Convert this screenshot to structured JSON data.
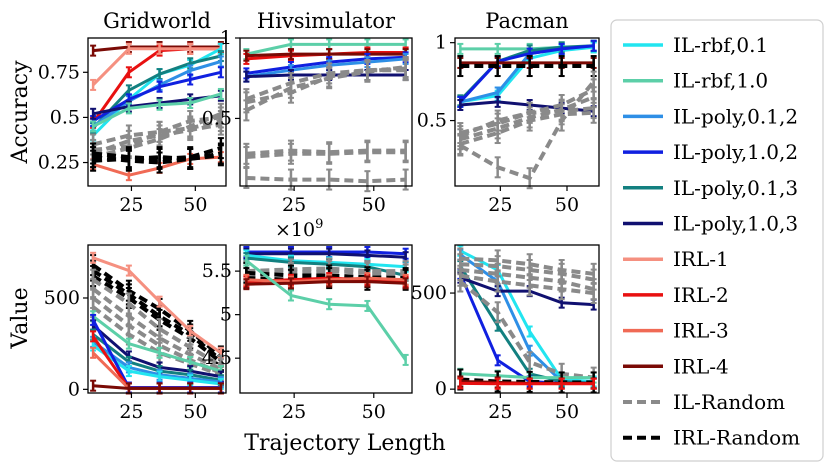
{
  "figure": {
    "xlabel": "Trajectory Length",
    "row_labels": [
      "Accuracy",
      "Value"
    ],
    "hiv_value_offset": "×10",
    "hiv_value_exponent": "9"
  },
  "colors": {
    "IL-rbf,0.1": "#22e5f0",
    "IL-rbf,1.0": "#5ccfa8",
    "IL-poly,0.1,2": "#2e8fe6",
    "IL-poly,1.0,2": "#1020e0",
    "IL-poly,0.1,3": "#138080",
    "IL-poly,1.0,3": "#101070",
    "IRL-1": "#f59080",
    "IRL-2": "#e81010",
    "IRL-3": "#f06a55",
    "IRL-4": "#7a0a05",
    "IL-Random": "#8a8a8a",
    "IRL-Random": "#000000"
  },
  "chart_data": [
    {
      "type": "line",
      "title": "Gridworld",
      "ylabel": "Accuracy",
      "xlabel": "",
      "x": [
        10,
        24,
        36,
        48,
        60
      ],
      "xlim": [
        8,
        62
      ],
      "ylim": [
        0.12,
        0.94
      ],
      "xticks": [
        25,
        50
      ],
      "yticks": [
        0.25,
        0.5,
        0.75
      ],
      "series": [
        {
          "name": "IRL-4",
          "values": [
            0.87,
            0.89,
            0.89,
            0.89,
            0.89
          ]
        },
        {
          "name": "IRL-2",
          "values": [
            0.47,
            0.75,
            0.87,
            0.88,
            0.88
          ]
        },
        {
          "name": "IRL-1",
          "values": [
            0.68,
            0.88,
            0.88,
            0.88,
            0.88
          ]
        },
        {
          "name": "IRL-3",
          "values": [
            0.24,
            0.18,
            0.22,
            0.27,
            0.28
          ]
        },
        {
          "name": "IL-rbf,0.1",
          "values": [
            0.4,
            0.6,
            0.74,
            0.79,
            0.88
          ]
        },
        {
          "name": "IL-poly,0.1,3",
          "values": [
            0.44,
            0.65,
            0.74,
            0.8,
            0.84
          ]
        },
        {
          "name": "IL-poly,0.1,2",
          "values": [
            0.45,
            0.59,
            0.68,
            0.76,
            0.81
          ]
        },
        {
          "name": "IL-poly,1.0,2",
          "values": [
            0.48,
            0.6,
            0.67,
            0.71,
            0.75
          ]
        },
        {
          "name": "IL-poly,1.0,3",
          "values": [
            0.52,
            0.56,
            0.58,
            0.6,
            0.62
          ]
        },
        {
          "name": "IL-rbf,1.0",
          "values": [
            0.45,
            0.55,
            0.57,
            0.58,
            0.63
          ]
        },
        {
          "name": "IL-Random",
          "values": [
            0.35,
            0.4,
            0.42,
            0.44,
            0.48
          ]
        },
        {
          "name": "IL-Random",
          "values": [
            0.3,
            0.37,
            0.4,
            0.43,
            0.46
          ]
        },
        {
          "name": "IL-Random",
          "values": [
            0.32,
            0.34,
            0.42,
            0.48,
            0.5
          ]
        },
        {
          "name": "IL-Random",
          "values": [
            0.28,
            0.33,
            0.38,
            0.45,
            0.52
          ]
        },
        {
          "name": "IRL-Random",
          "values": [
            0.3,
            0.28,
            0.27,
            0.28,
            0.33
          ]
        },
        {
          "name": "IRL-Random",
          "values": [
            0.28,
            0.26,
            0.25,
            0.27,
            0.3
          ]
        },
        {
          "name": "IRL-Random",
          "values": [
            0.26,
            0.27,
            0.28,
            0.27,
            0.29
          ]
        }
      ]
    },
    {
      "type": "line",
      "title": "Hivsimulator",
      "ylabel": "",
      "xlabel": "",
      "x": [
        10,
        24,
        36,
        48,
        60
      ],
      "xlim": [
        8,
        62
      ],
      "ylim": [
        0.08,
        1.0
      ],
      "xticks": [
        25,
        50
      ],
      "yticks": [
        0.5,
        1.0
      ],
      "series": [
        {
          "name": "IL-rbf,1.0",
          "values": [
            0.9,
            0.96,
            0.96,
            0.96,
            0.96
          ]
        },
        {
          "name": "IRL-2",
          "values": [
            0.87,
            0.89,
            0.9,
            0.91,
            0.91
          ]
        },
        {
          "name": "IRL-4",
          "values": [
            0.89,
            0.9,
            0.9,
            0.9,
            0.9
          ]
        },
        {
          "name": "IL-poly,1.0,2",
          "values": [
            0.78,
            0.82,
            0.85,
            0.87,
            0.88
          ]
        },
        {
          "name": "IL-poly,0.1,2",
          "values": [
            0.76,
            0.8,
            0.83,
            0.85,
            0.87
          ]
        },
        {
          "name": "IL-poly,1.0,3",
          "values": [
            0.76,
            0.77,
            0.77,
            0.77,
            0.77
          ]
        },
        {
          "name": "IL-Random",
          "values": [
            0.55,
            0.69,
            0.75,
            0.79,
            0.82
          ]
        },
        {
          "name": "IL-Random",
          "values": [
            0.62,
            0.72,
            0.78,
            0.8,
            0.8
          ]
        },
        {
          "name": "IL-Random",
          "values": [
            0.6,
            0.66,
            0.76,
            0.8,
            0.81
          ]
        },
        {
          "name": "IL-Random",
          "values": [
            0.28,
            0.3,
            0.29,
            0.3,
            0.3
          ]
        },
        {
          "name": "IL-Random",
          "values": [
            0.26,
            0.28,
            0.28,
            0.29,
            0.29
          ]
        },
        {
          "name": "IL-Random",
          "values": [
            0.13,
            0.12,
            0.12,
            0.11,
            0.12
          ]
        }
      ]
    },
    {
      "type": "line",
      "title": "Pacman",
      "ylabel": "",
      "xlabel": "",
      "x": [
        10,
        24,
        36,
        48,
        60
      ],
      "xlim": [
        8,
        62
      ],
      "ylim": [
        0.08,
        1.03
      ],
      "xticks": [
        25,
        50
      ],
      "yticks": [
        0.5,
        1.0
      ],
      "series": [
        {
          "name": "IL-rbf,1.0",
          "values": [
            0.96,
            0.96,
            0.96,
            0.97,
            0.97
          ]
        },
        {
          "name": "IL-rbf,0.1",
          "values": [
            0.62,
            0.66,
            0.9,
            0.95,
            0.97
          ]
        },
        {
          "name": "IL-poly,0.1,2",
          "values": [
            0.62,
            0.68,
            0.93,
            0.96,
            0.98
          ]
        },
        {
          "name": "IL-poly,0.1,3",
          "values": [
            0.63,
            0.88,
            0.95,
            0.97,
            0.98
          ]
        },
        {
          "name": "IL-poly,1.0,2",
          "values": [
            0.62,
            0.88,
            0.93,
            0.96,
            0.98
          ]
        },
        {
          "name": "IL-poly,1.0,3",
          "values": [
            0.6,
            0.62,
            0.6,
            0.58,
            0.56
          ]
        },
        {
          "name": "IRL-4",
          "values": [
            0.87,
            0.87,
            0.87,
            0.87,
            0.87
          ]
        },
        {
          "name": "IRL-Random",
          "values": [
            0.85,
            0.85,
            0.85,
            0.85,
            0.85
          ]
        },
        {
          "name": "IL-Random",
          "values": [
            0.4,
            0.5,
            0.55,
            0.6,
            0.7
          ]
        },
        {
          "name": "IL-Random",
          "values": [
            0.38,
            0.45,
            0.52,
            0.57,
            0.65
          ]
        },
        {
          "name": "IL-Random",
          "values": [
            0.42,
            0.48,
            0.55,
            0.56,
            0.58
          ]
        },
        {
          "name": "IL-Random",
          "values": [
            0.35,
            0.42,
            0.5,
            0.54,
            0.55
          ]
        },
        {
          "name": "IL-Random",
          "values": [
            0.34,
            0.2,
            0.13,
            0.5,
            0.75
          ]
        }
      ]
    },
    {
      "type": "line",
      "title": "",
      "ylabel": "Value",
      "xlabel": "",
      "x": [
        10,
        24,
        36,
        48,
        60
      ],
      "xlim": [
        8,
        62
      ],
      "ylim": [
        -20,
        790
      ],
      "xticks": [
        25,
        50
      ],
      "yticks": [
        0,
        500
      ],
      "series": [
        {
          "name": "IRL-Random",
          "values": [
            680,
            540,
            440,
            320,
            180
          ]
        },
        {
          "name": "IRL-Random",
          "values": [
            650,
            520,
            400,
            300,
            160
          ]
        },
        {
          "name": "IRL-Random",
          "values": [
            620,
            500,
            380,
            280,
            150
          ]
        },
        {
          "name": "IRL-1",
          "values": [
            720,
            650,
            480,
            320,
            200
          ]
        },
        {
          "name": "IL-Random",
          "values": [
            600,
            470,
            330,
            230,
            130
          ]
        },
        {
          "name": "IL-Random",
          "values": [
            550,
            400,
            280,
            190,
            110
          ]
        },
        {
          "name": "IL-Random",
          "values": [
            500,
            350,
            240,
            160,
            90
          ]
        },
        {
          "name": "IL-Random",
          "values": [
            450,
            300,
            200,
            140,
            80
          ]
        },
        {
          "name": "IL-rbf,1.0",
          "values": [
            400,
            250,
            200,
            150,
            100
          ]
        },
        {
          "name": "IL-poly,1.0,3",
          "values": [
            350,
            180,
            120,
            100,
            70
          ]
        },
        {
          "name": "IL-poly,0.1,3",
          "values": [
            300,
            150,
            100,
            80,
            50
          ]
        },
        {
          "name": "IL-poly,0.1,2",
          "values": [
            260,
            120,
            80,
            60,
            40
          ]
        },
        {
          "name": "IL-rbf,0.1",
          "values": [
            240,
            100,
            70,
            50,
            30
          ]
        },
        {
          "name": "IL-poly,1.0,2",
          "values": [
            380,
            10,
            10,
            10,
            10
          ]
        },
        {
          "name": "IRL-2",
          "values": [
            290,
            5,
            5,
            5,
            5
          ]
        },
        {
          "name": "IRL-3",
          "values": [
            200,
            5,
            5,
            5,
            5
          ]
        },
        {
          "name": "IRL-4",
          "values": [
            20,
            5,
            5,
            5,
            5
          ]
        }
      ]
    },
    {
      "type": "line",
      "title": "",
      "ylabel": "",
      "xlabel": "Trajectory Length",
      "x": [
        10,
        24,
        36,
        48,
        60
      ],
      "xlim": [
        8,
        62
      ],
      "ylim": [
        4.1,
        5.8
      ],
      "xticks": [
        25,
        50
      ],
      "yticks": [
        4.5,
        5.0,
        5.5
      ],
      "series": [
        {
          "name": "IL-poly,1.0,2",
          "values": [
            5.72,
            5.72,
            5.72,
            5.72,
            5.7
          ]
        },
        {
          "name": "IL-poly,1.0,3",
          "values": [
            5.7,
            5.7,
            5.7,
            5.68,
            5.66
          ]
        },
        {
          "name": "IL-rbf,0.1",
          "values": [
            5.68,
            5.62,
            5.6,
            5.58,
            5.55
          ]
        },
        {
          "name": "IL-poly,0.1,3",
          "values": [
            5.65,
            5.6,
            5.58,
            5.55,
            5.45
          ]
        },
        {
          "name": "IL-Random",
          "values": [
            5.5,
            5.52,
            5.53,
            5.5,
            5.5
          ]
        },
        {
          "name": "IL-Random",
          "values": [
            5.45,
            5.48,
            5.5,
            5.48,
            5.46
          ]
        },
        {
          "name": "IRL-Random",
          "values": [
            5.48,
            5.45,
            5.45,
            5.43,
            5.42
          ]
        },
        {
          "name": "IRL-Random",
          "values": [
            5.42,
            5.4,
            5.42,
            5.4,
            5.4
          ]
        },
        {
          "name": "IRL-2",
          "values": [
            5.38,
            5.4,
            5.42,
            5.4,
            5.38
          ]
        },
        {
          "name": "IRL-3",
          "values": [
            5.4,
            5.38,
            5.4,
            5.42,
            5.4
          ]
        },
        {
          "name": "IRL-4",
          "values": [
            5.35,
            5.36,
            5.38,
            5.38,
            5.36
          ]
        },
        {
          "name": "IL-rbf,1.0",
          "values": [
            5.62,
            5.22,
            5.12,
            5.1,
            4.48
          ]
        }
      ]
    },
    {
      "type": "line",
      "title": "",
      "ylabel": "",
      "xlabel": "",
      "x": [
        10,
        24,
        36,
        48,
        60
      ],
      "xlim": [
        8,
        62
      ],
      "ylim": [
        -20,
        750
      ],
      "xticks": [
        25,
        50
      ],
      "yticks": [
        0,
        500
      ],
      "series": [
        {
          "name": "IL-rbf,0.1",
          "values": [
            720,
            620,
            300,
            50,
            40
          ]
        },
        {
          "name": "IL-poly,0.1,2",
          "values": [
            700,
            560,
            200,
            40,
            30
          ]
        },
        {
          "name": "IL-poly,0.1,3",
          "values": [
            640,
            330,
            80,
            40,
            30
          ]
        },
        {
          "name": "IL-poly,1.0,2",
          "values": [
            600,
            150,
            40,
            30,
            30
          ]
        },
        {
          "name": "IL-poly,1.0,3",
          "values": [
            580,
            510,
            510,
            450,
            440
          ]
        },
        {
          "name": "IL-Random",
          "values": [
            680,
            670,
            650,
            620,
            600
          ]
        },
        {
          "name": "IL-Random",
          "values": [
            650,
            640,
            620,
            600,
            570
          ]
        },
        {
          "name": "IL-Random",
          "values": [
            620,
            600,
            580,
            560,
            520
          ]
        },
        {
          "name": "IL-Random",
          "values": [
            590,
            560,
            540,
            520,
            500
          ]
        },
        {
          "name": "IL-Random",
          "values": [
            560,
            400,
            140,
            80,
            60
          ]
        },
        {
          "name": "IL-rbf,1.0",
          "values": [
            80,
            70,
            60,
            60,
            60
          ]
        },
        {
          "name": "IRL-Random",
          "values": [
            50,
            40,
            38,
            35,
            35
          ]
        },
        {
          "name": "IRL-4",
          "values": [
            40,
            35,
            30,
            30,
            30
          ]
        },
        {
          "name": "IRL-2",
          "values": [
            30,
            28,
            28,
            28,
            28
          ]
        }
      ]
    }
  ],
  "legend": {
    "placement": "right",
    "items": [
      {
        "label": "IL-rbf,0.1",
        "style": "solid"
      },
      {
        "label": "IL-rbf,1.0",
        "style": "solid"
      },
      {
        "label": "IL-poly,0.1,2",
        "style": "solid"
      },
      {
        "label": "IL-poly,1.0,2",
        "style": "solid"
      },
      {
        "label": "IL-poly,0.1,3",
        "style": "solid"
      },
      {
        "label": "IL-poly,1.0,3",
        "style": "solid"
      },
      {
        "label": "IRL-1",
        "style": "solid"
      },
      {
        "label": "IRL-2",
        "style": "solid"
      },
      {
        "label": "IRL-3",
        "style": "solid"
      },
      {
        "label": "IRL-4",
        "style": "solid"
      },
      {
        "label": "IL-Random",
        "style": "dashed"
      },
      {
        "label": "IRL-Random",
        "style": "dashed"
      }
    ]
  }
}
